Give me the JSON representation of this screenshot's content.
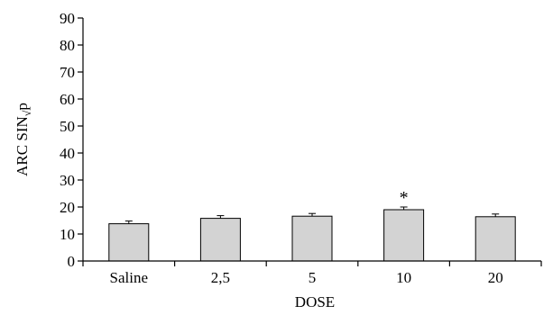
{
  "chart_data": {
    "type": "bar",
    "categories": [
      "Saline",
      "2,5",
      "5",
      "10",
      "20"
    ],
    "values": [
      13.8,
      15.8,
      16.6,
      19.0,
      16.4
    ],
    "errors": [
      1.0,
      1.0,
      1.0,
      1.0,
      1.0
    ],
    "annotations": [
      "",
      "",
      "",
      "*",
      ""
    ],
    "xlabel": "DOSE",
    "ylabel": "ARC SIN√p",
    "ylabel_parts": {
      "main": "ARC SIN",
      "sub": "√",
      "sup": "p"
    },
    "ylim": [
      0,
      90
    ],
    "yticks": [
      0,
      10,
      20,
      30,
      40,
      50,
      60,
      70,
      80,
      90
    ],
    "grid": false,
    "legend": "none",
    "colors": {
      "bar_fill": "#d3d3d3",
      "bar_stroke": "#000000",
      "axis": "#000000"
    }
  }
}
